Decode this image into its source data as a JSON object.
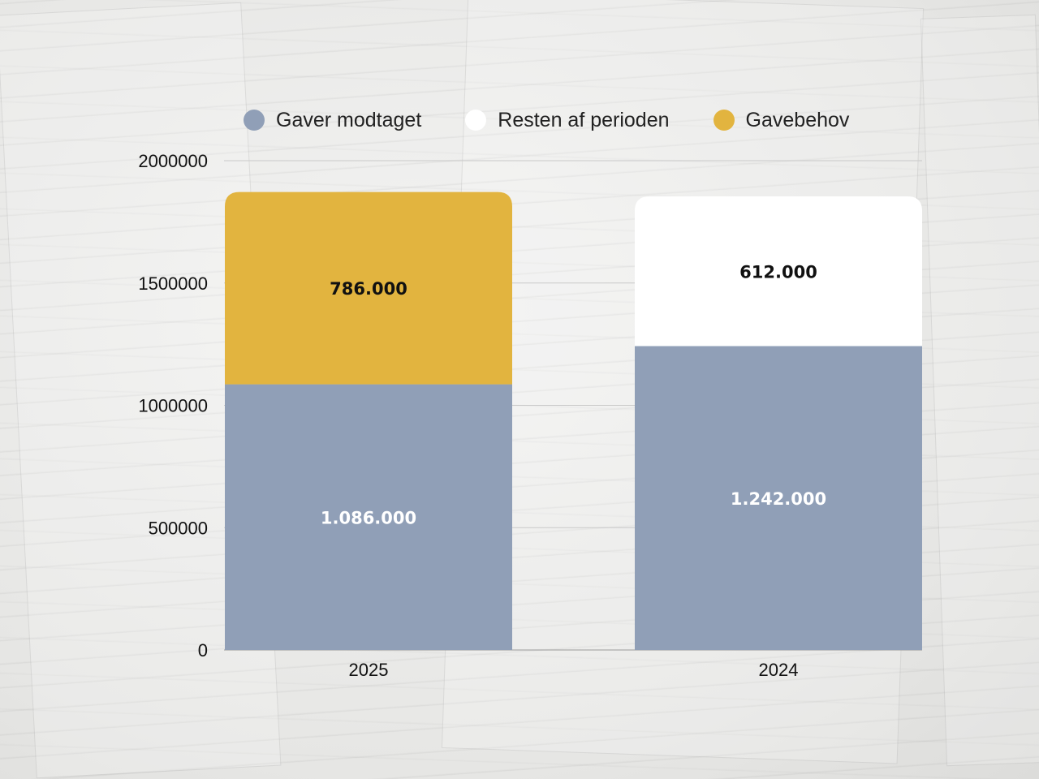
{
  "chart_data": {
    "type": "bar",
    "stacked": true,
    "categories": [
      "2025",
      "2024"
    ],
    "ylim": [
      0,
      2000000
    ],
    "yticks": [
      "0",
      "500000",
      "1000000",
      "1500000",
      "2000000"
    ],
    "grid": true,
    "legend_position": "top",
    "series": [
      {
        "name": "Gaver modtaget",
        "color": "#909fb7",
        "values": [
          1086000,
          1242000
        ],
        "labels": [
          "1.086.000",
          "1.242.000"
        ],
        "label_color": "#ffffff"
      },
      {
        "name": "Resten af perioden",
        "color": "#ffffff",
        "values": [
          0,
          612000
        ],
        "labels": [
          "",
          "612.000"
        ],
        "label_color": "#111111"
      },
      {
        "name": "Gavebehov",
        "color": "#e2b43f",
        "values": [
          786000,
          0
        ],
        "labels": [
          "786.000",
          ""
        ],
        "label_color": "#111111"
      }
    ]
  }
}
